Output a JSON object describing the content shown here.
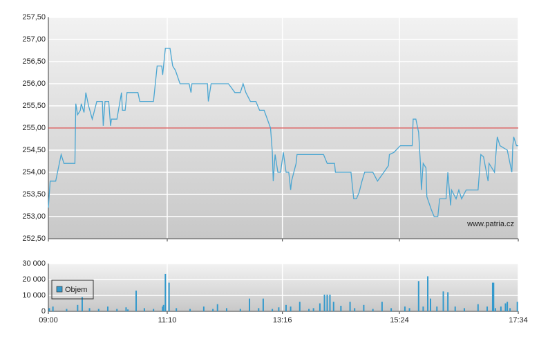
{
  "chart_data": [
    {
      "type": "line",
      "annotation": "www.patria.cz",
      "x": [
        "09:00",
        "09:02",
        "09:08",
        "09:14",
        "09:17",
        "09:29",
        "09:30",
        "09:32",
        "09:35",
        "09:36",
        "09:39",
        "09:41",
        "09:44",
        "09:48",
        "09:53",
        "09:59",
        "10:00",
        "10:02",
        "10:06",
        "10:08",
        "10:09",
        "10:15",
        "10:20",
        "10:21",
        "10:24",
        "10:26",
        "10:38",
        "10:40",
        "10:55",
        "10:58",
        "10:59",
        "11:04",
        "11:05",
        "11:08",
        "11:13",
        "11:16",
        "11:19",
        "11:24",
        "11:34",
        "11:36",
        "11:37",
        "11:54",
        "11:55",
        "11:58",
        "12:17",
        "12:24",
        "12:30",
        "12:33",
        "12:36",
        "12:41",
        "12:47",
        "12:51",
        "12:56",
        "13:03",
        "13:05",
        "13:06",
        "13:08",
        "13:11",
        "13:14",
        "13:17",
        "13:20",
        "13:23",
        "13:25",
        "13:26",
        "13:31",
        "13:32",
        "14:01",
        "14:05",
        "14:13",
        "14:14",
        "14:31",
        "14:34",
        "14:37",
        "14:40",
        "14:43",
        "14:46",
        "14:55",
        "15:00",
        "15:07",
        "15:12",
        "15:13",
        "15:18",
        "15:25",
        "15:38",
        "15:39",
        "15:42",
        "15:45",
        "15:47",
        "15:48",
        "15:50",
        "15:53",
        "15:54",
        "15:59",
        "16:02",
        "16:06",
        "16:08",
        "16:15",
        "16:17",
        "16:20",
        "16:21",
        "16:26",
        "16:29",
        "16:32",
        "16:37",
        "16:50",
        "16:53",
        "16:56",
        "17:01",
        "17:02",
        "17:08",
        "17:11",
        "17:14",
        "17:22",
        "17:27",
        "17:28",
        "17:29",
        "17:32",
        "17:34"
      ],
      "values": [
        253.2,
        253.8,
        253.8,
        254.4,
        254.2,
        254.2,
        255.55,
        255.3,
        255.4,
        255.55,
        255.35,
        255.8,
        255.5,
        255.2,
        255.6,
        255.6,
        255.05,
        255.6,
        255.6,
        255.05,
        255.2,
        255.2,
        255.8,
        255.4,
        255.4,
        255.8,
        255.8,
        255.6,
        255.6,
        256.2,
        256.4,
        256.4,
        256.2,
        256.8,
        256.8,
        256.4,
        256.3,
        256.0,
        256.0,
        255.8,
        256.0,
        256.0,
        255.6,
        256.0,
        256.0,
        255.8,
        255.8,
        256.0,
        255.8,
        255.6,
        255.6,
        255.4,
        255.4,
        255.0,
        254.45,
        253.8,
        254.4,
        254.0,
        254.0,
        254.45,
        254.0,
        254.0,
        253.6,
        253.8,
        254.2,
        254.4,
        254.4,
        254.2,
        254.2,
        254.0,
        254.0,
        253.4,
        253.4,
        253.55,
        253.8,
        254.0,
        254.0,
        253.8,
        254.0,
        254.15,
        254.4,
        254.45,
        254.6,
        254.6,
        255.2,
        255.2,
        254.9,
        254.2,
        253.6,
        254.2,
        254.1,
        253.45,
        253.15,
        253.0,
        253.0,
        253.4,
        253.4,
        254.0,
        253.25,
        253.6,
        253.4,
        253.6,
        253.4,
        253.6,
        253.6,
        254.4,
        254.35,
        253.8,
        254.2,
        254.0,
        254.8,
        254.6,
        254.5,
        254.0,
        254.6,
        254.8,
        254.6,
        254.6
      ],
      "color": "#4aa6d2",
      "reference_line": {
        "value": 255.0,
        "color": "#cc2222"
      },
      "ylim": [
        252.5,
        257.5
      ],
      "yticks": [
        {
          "value": 252.5,
          "label": "252,50"
        },
        {
          "value": 253.0,
          "label": "253,00"
        },
        {
          "value": 253.5,
          "label": "253,50"
        },
        {
          "value": 254.0,
          "label": "254,00"
        },
        {
          "value": 254.5,
          "label": "254,50"
        },
        {
          "value": 255.0,
          "label": "255,00"
        },
        {
          "value": 255.5,
          "label": "255,50"
        },
        {
          "value": 256.0,
          "label": "256,00"
        },
        {
          "value": 256.5,
          "label": "256,50"
        },
        {
          "value": 257.0,
          "label": "257,00"
        },
        {
          "value": 257.5,
          "label": "257,50"
        }
      ],
      "grid": true
    },
    {
      "type": "bar",
      "x": [
        "09:01",
        "09:05",
        "09:20",
        "09:32",
        "09:37",
        "09:45",
        "09:55",
        "10:05",
        "10:15",
        "10:25",
        "10:27",
        "10:36",
        "10:45",
        "10:55",
        "11:05",
        "11:06",
        "11:08",
        "11:12",
        "11:20",
        "11:35",
        "11:50",
        "12:00",
        "12:05",
        "12:15",
        "12:30",
        "12:40",
        "12:50",
        "12:55",
        "13:05",
        "13:12",
        "13:20",
        "13:25",
        "13:35",
        "13:45",
        "13:50",
        "13:57",
        "14:02",
        "14:05",
        "14:08",
        "14:12",
        "14:20",
        "14:30",
        "14:35",
        "14:45",
        "14:55",
        "15:05",
        "15:15",
        "15:30",
        "15:35",
        "15:45",
        "15:50",
        "15:55",
        "15:58",
        "16:05",
        "16:12",
        "16:17",
        "16:25",
        "16:35",
        "16:50",
        "17:00",
        "17:06",
        "17:07",
        "17:09",
        "17:15",
        "17:20",
        "17:22",
        "17:25",
        "17:33"
      ],
      "series": [
        {
          "name": "Objem",
          "color": "#3399cc",
          "values": [
            2000,
            3000,
            1500,
            4000,
            9000,
            2000,
            1500,
            3000,
            1500,
            2500,
            1200,
            13000,
            2000,
            1500,
            3000,
            4000,
            23500,
            18000,
            2000,
            1500,
            3000,
            1500,
            4500,
            2000,
            1500,
            8000,
            2000,
            8000,
            1500,
            2500,
            4000,
            3000,
            6000,
            1500,
            2000,
            5000,
            10500,
            10500,
            10500,
            6000,
            3500,
            6000,
            2000,
            4000,
            1500,
            6000,
            2000,
            3000,
            2000,
            19000,
            3000,
            22000,
            8000,
            3000,
            12500,
            12000,
            3000,
            2000,
            4500,
            3000,
            18000,
            18000,
            2000,
            3000,
            5000,
            6000,
            2000,
            6000
          ]
        }
      ],
      "xlim": [
        "09:00",
        "17:34"
      ],
      "xticks": [
        "09:00",
        "11:10",
        "13:16",
        "15:24",
        "17:34"
      ],
      "ylim": [
        0,
        30000
      ],
      "yticks": [
        0,
        {
          "value": 10000,
          "label": "10 000"
        },
        {
          "value": 20000,
          "label": "20 000"
        },
        {
          "value": 30000,
          "label": "30 000"
        }
      ],
      "grid": true
    }
  ]
}
